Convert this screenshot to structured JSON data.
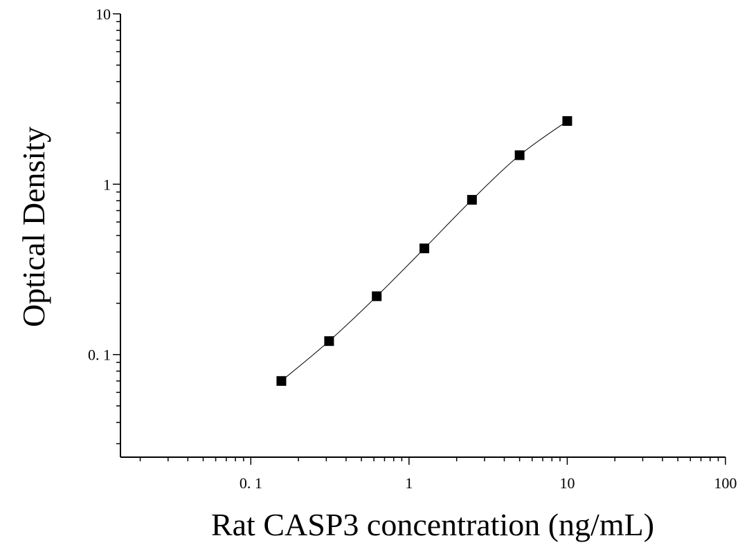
{
  "chart_data": {
    "type": "scatter",
    "title": "",
    "xlabel": "Rat CASP3 concentration (ng/mL)",
    "ylabel": "Optical Density",
    "xscale": "log",
    "yscale": "log",
    "xlim": [
      0.015,
      100
    ],
    "ylim": [
      0.025,
      10
    ],
    "x_ticks": [
      0.1,
      1,
      10,
      100
    ],
    "x_tick_labels": [
      "0. 1",
      "1",
      "10",
      "100"
    ],
    "y_ticks": [
      0.1,
      1,
      10
    ],
    "y_tick_labels": [
      "0. 1",
      "1",
      "10"
    ],
    "grid": false,
    "legend": "none",
    "series": [
      {
        "marker": "square",
        "color": "#000000",
        "x": [
          0.156,
          0.3125,
          0.625,
          1.25,
          2.5,
          5,
          10
        ],
        "y": [
          0.07,
          0.12,
          0.22,
          0.42,
          0.81,
          1.48,
          2.35
        ]
      }
    ],
    "fit_curve": {
      "color": "#000000",
      "type": "smooth"
    }
  }
}
